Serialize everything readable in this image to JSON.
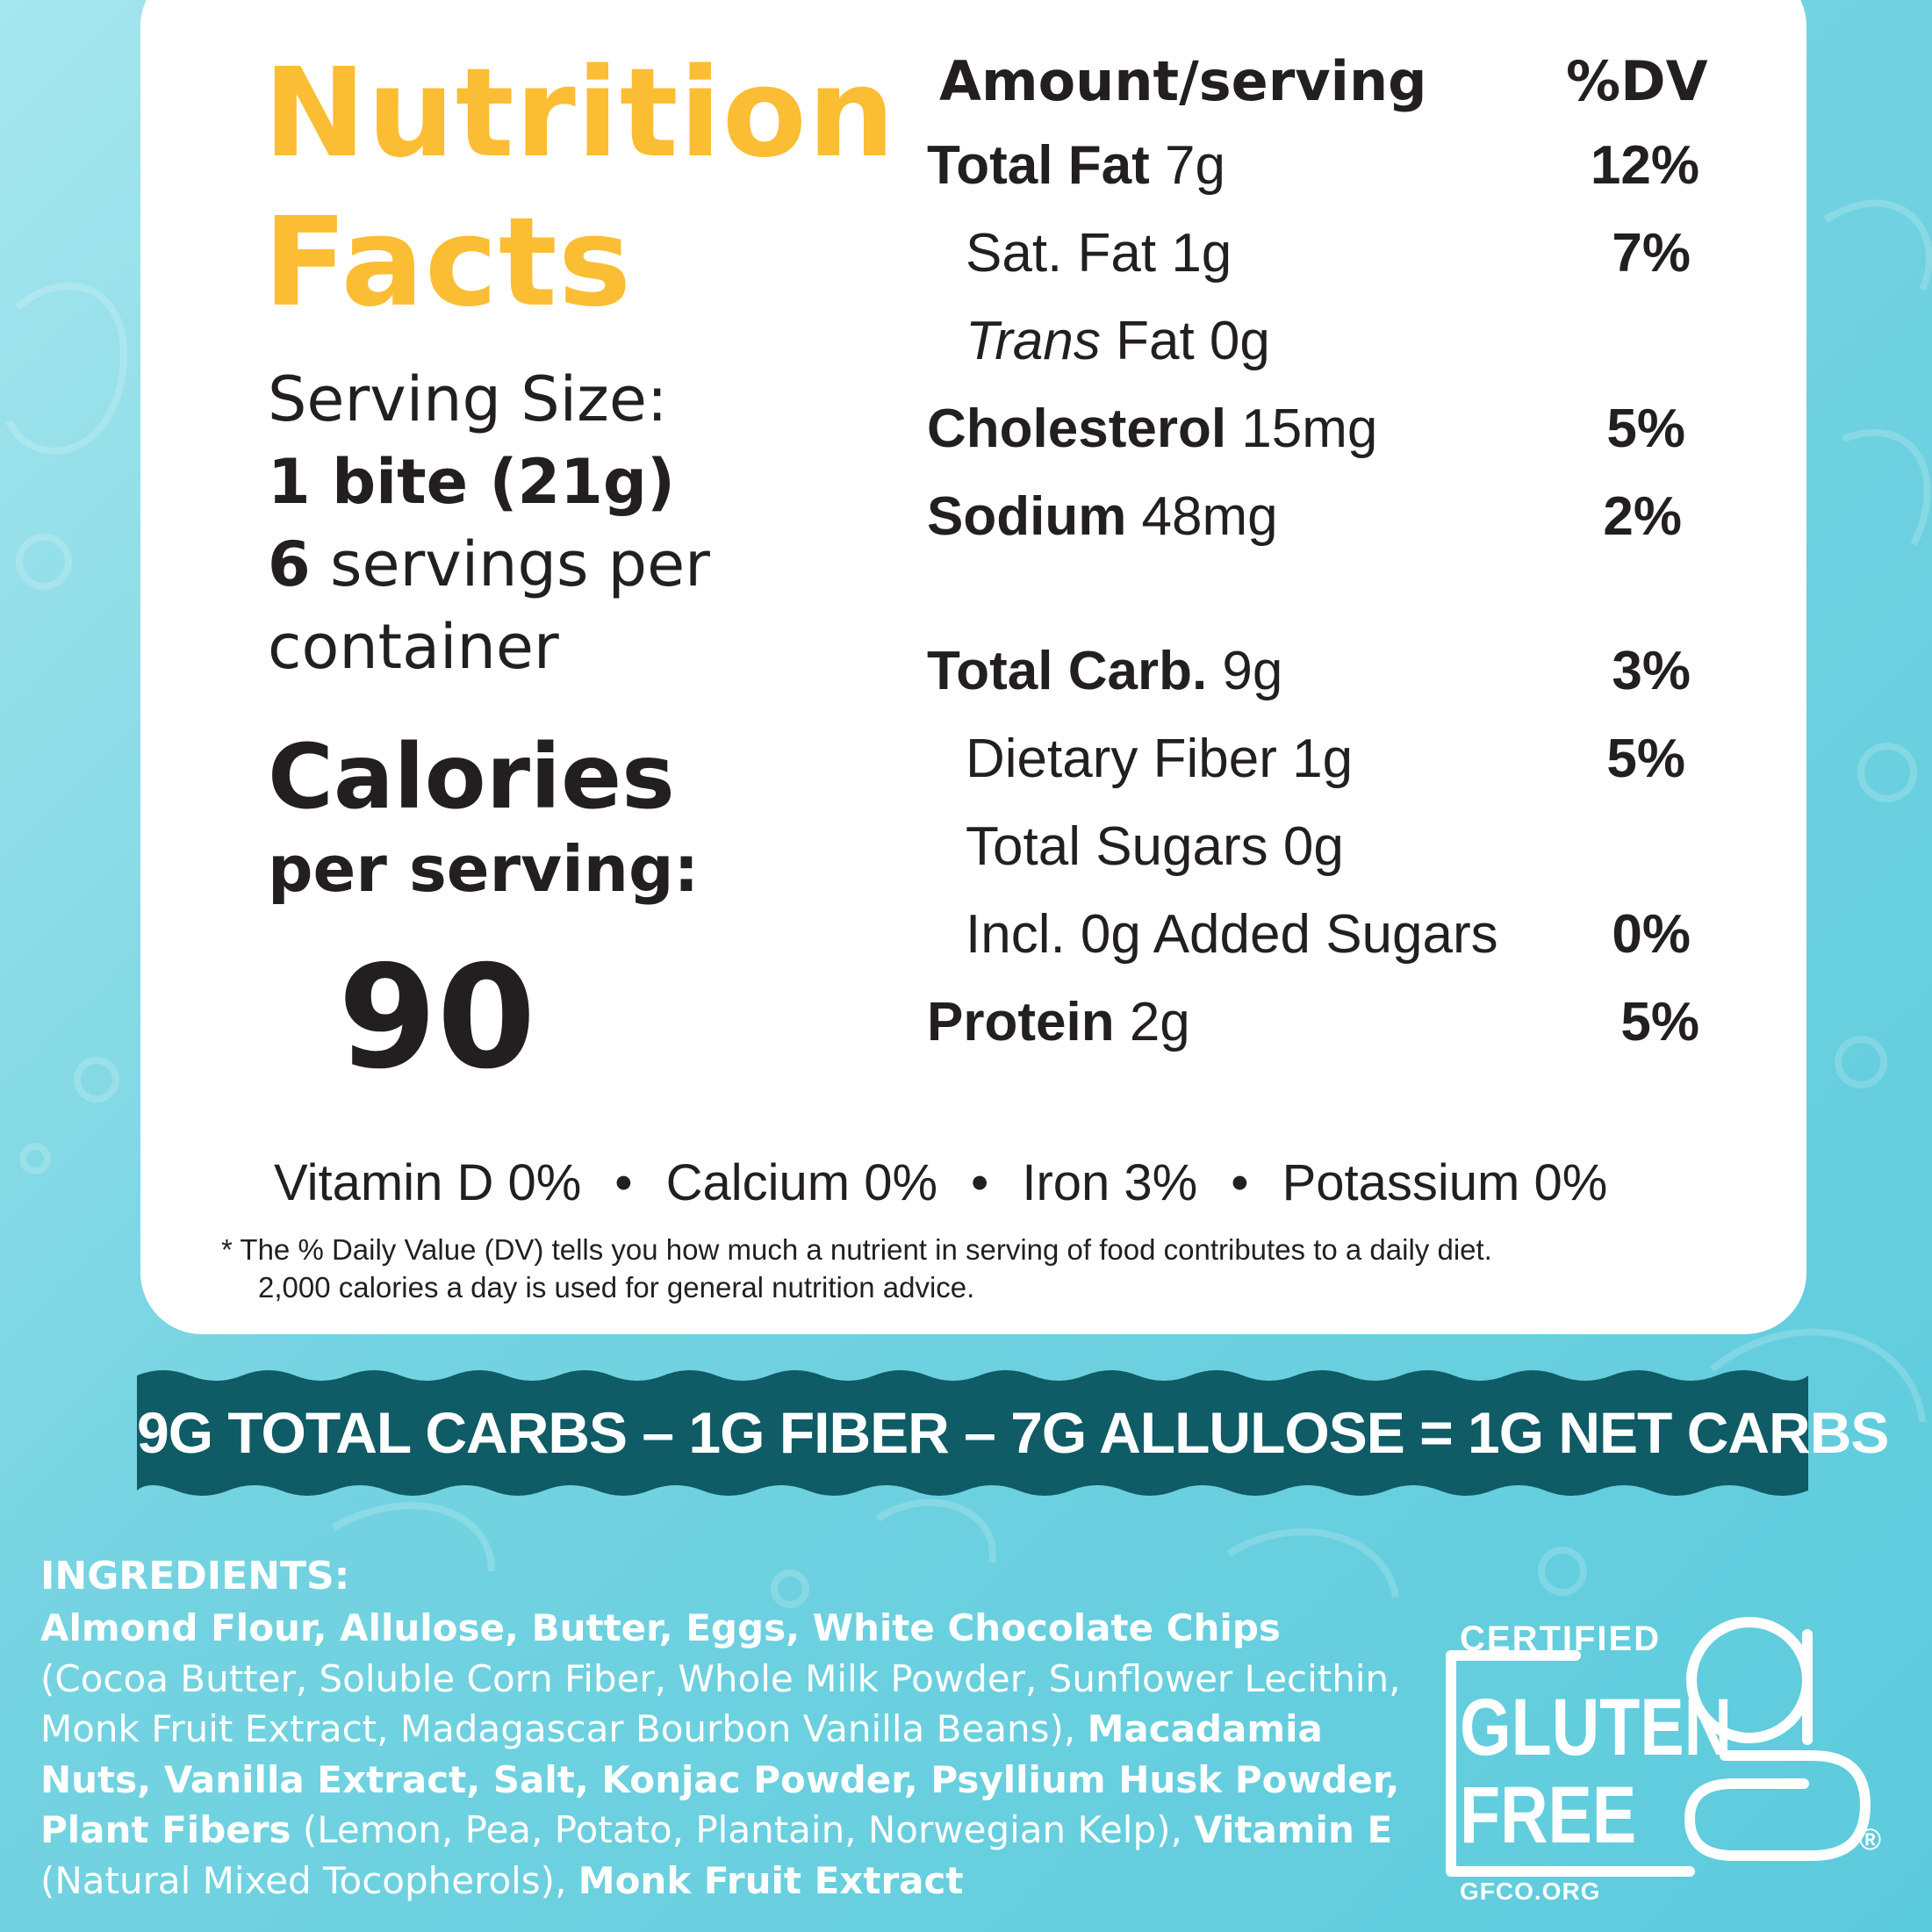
{
  "label": {
    "title_line1": "Nutrition",
    "title_line2": "Facts",
    "serving_size_label": "Serving Size:",
    "serving_size_value": "1 bite (21g)",
    "servings_count": "6",
    "servings_text": " servings per",
    "servings_text2": "container",
    "calories_label": "Calories",
    "calories_sub": "per serving:",
    "calories_value": "90",
    "col_amount": "Amount/serving",
    "col_dv": "%DV",
    "rows": [
      {
        "name": "Total Fat",
        "amount": " 7g",
        "pct": "12%"
      },
      {
        "name": "Sat. Fat",
        "amount": " 1g",
        "pct": "7%"
      },
      {
        "name": "Trans",
        "amount": " Fat  0g",
        "pct": ""
      },
      {
        "name": "Cholesterol",
        "amount": " 15mg",
        "pct": "5%"
      },
      {
        "name": "Sodium",
        "amount": "  48mg",
        "pct": "2%"
      },
      {
        "name": "Total Carb.",
        "amount": "  9g",
        "pct": "3%"
      },
      {
        "name": "Dietary Fiber",
        "amount": "  1g",
        "pct": "5%"
      },
      {
        "name": "Total Sugars",
        "amount": " 0g",
        "pct": ""
      },
      {
        "name": "Incl. 0g Added Sugars",
        "amount": "",
        "pct": "0%"
      },
      {
        "name": "Protein",
        "amount": " 2g",
        "pct": "5%"
      }
    ],
    "vitamins": [
      "Vitamin D 0%",
      "Calcium 0%",
      "Iron 3%",
      "Potassium 0%"
    ],
    "vitamin_separator": "•",
    "footnote_line1": "* The % Daily Value (DV) tells you how much a nutrient in serving of food contributes to a daily diet.",
    "footnote_line2": "2,000 calories a day is used for general nutrition advice."
  },
  "banner": {
    "text": "9G  TOTAL CARBS  –  1G FIBER –  7G ALLULOSE = 1G NET CARBS"
  },
  "ingredients": {
    "title": "INGREDIENTS:",
    "parts": [
      {
        "t": "Almond Flour, Allulose, Butter, Eggs, White Chocolate Chips",
        "bold": true
      },
      {
        "t": " (Cocoa Butter, Soluble Corn Fiber, Whole Milk Powder, Sunflower Lecithin, Monk Fruit Extract, Madagascar Bourbon Vanilla Beans), ",
        "bold": false
      },
      {
        "t": "Macadamia Nuts, Vanilla Extract, Salt, Konjac Powder, Psyllium Husk Powder, Plant Fibers",
        "bold": true
      },
      {
        "t": " (Lemon, Pea, Potato, Plantain, Norwegian Kelp), ",
        "bold": false
      },
      {
        "t": "Vitamin E",
        "bold": true
      },
      {
        "t": " (Natural Mixed Tocopherols), ",
        "bold": false
      },
      {
        "t": "Monk Fruit Extract",
        "bold": true
      }
    ]
  },
  "badge": {
    "certified": "CERTIFIED",
    "gluten": "GLUTEN",
    "free": "FREE",
    "url": "GFCO.ORG",
    "reg": "®"
  },
  "colors": {
    "title": "#fbbd33",
    "banner": "#0f5b66",
    "background": "#6fd1df",
    "card": "#ffffff"
  }
}
